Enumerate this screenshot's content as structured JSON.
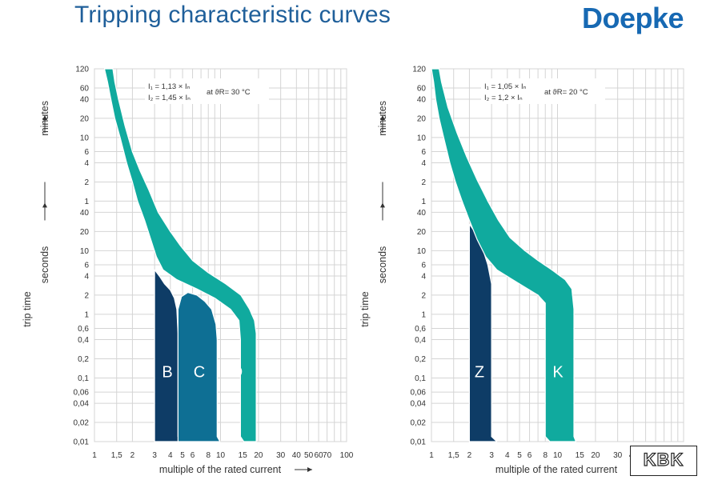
{
  "header": {
    "title": "Tripping characteristic curves",
    "brand": "Doepke"
  },
  "watermark": "KBK",
  "colors": {
    "B": "#0e3c66",
    "C": "#0e6f94",
    "D": "#10aa9e",
    "Z": "#0e3c66",
    "K": "#10aa9e",
    "title": "#1f5f9a",
    "brand": "#1769b3"
  },
  "chart_data": [
    {
      "type": "area",
      "x_scale": "log",
      "y_scale": "log",
      "xlim": [
        1,
        100
      ],
      "ylim": [
        0.01,
        7200
      ],
      "grid": true,
      "xlabel": "multiple of the rated current",
      "ylabel_main": "trip time",
      "ylabel_seconds": "seconds",
      "ylabel_minutes": "minutes",
      "x_ticks": [
        {
          "v": 1,
          "l": "1"
        },
        {
          "v": 1.5,
          "l": "1,5"
        },
        {
          "v": 2,
          "l": "2"
        },
        {
          "v": 3,
          "l": "3"
        },
        {
          "v": 4,
          "l": "4"
        },
        {
          "v": 5,
          "l": "5"
        },
        {
          "v": 6,
          "l": "6"
        },
        {
          "v": 8,
          "l": "8"
        },
        {
          "v": 10,
          "l": "10"
        },
        {
          "v": 15,
          "l": "15"
        },
        {
          "v": 20,
          "l": "20"
        },
        {
          "v": 30,
          "l": "30"
        },
        {
          "v": 40,
          "l": "40"
        },
        {
          "v": 50,
          "l": "50"
        },
        {
          "v": 60,
          "l": "60"
        },
        {
          "v": 70,
          "l": "70"
        },
        {
          "v": 100,
          "l": "100"
        }
      ],
      "y_ticks": [
        {
          "v": 0.01,
          "l": "0,01"
        },
        {
          "v": 0.02,
          "l": "0,02"
        },
        {
          "v": 0.04,
          "l": "0,04"
        },
        {
          "v": 0.06,
          "l": "0,06"
        },
        {
          "v": 0.1,
          "l": "0,1"
        },
        {
          "v": 0.2,
          "l": "0,2"
        },
        {
          "v": 0.4,
          "l": "0,4"
        },
        {
          "v": 0.6,
          "l": "0,6"
        },
        {
          "v": 1,
          "l": "1"
        },
        {
          "v": 2,
          "l": "2"
        },
        {
          "v": 4,
          "l": "4"
        },
        {
          "v": 6,
          "l": "6"
        },
        {
          "v": 10,
          "l": "10"
        },
        {
          "v": 20,
          "l": "20"
        },
        {
          "v": 40,
          "l": "40"
        },
        {
          "v": 60,
          "l": "1"
        },
        {
          "v": 120,
          "l": "2"
        },
        {
          "v": 240,
          "l": "4"
        },
        {
          "v": 360,
          "l": "6"
        },
        {
          "v": 600,
          "l": "10"
        },
        {
          "v": 1200,
          "l": "20"
        },
        {
          "v": 2400,
          "l": "40"
        },
        {
          "v": 3600,
          "l": "60"
        },
        {
          "v": 7200,
          "l": "120"
        }
      ],
      "notes": {
        "i1": "I₁ = 1,13 × Iₙ",
        "i2": "I₂ = 1,45 × Iₙ",
        "temp": "at ϑR= 30 °C"
      },
      "series": [
        {
          "name": "B",
          "points": [
            [
              3.0,
              0.01
            ],
            [
              3.0,
              5.0
            ],
            [
              3.3,
              3.9
            ],
            [
              3.6,
              3.0
            ],
            [
              4.0,
              2.4
            ],
            [
              4.3,
              1.8
            ],
            [
              4.5,
              1.2
            ],
            [
              4.6,
              0.5
            ],
            [
              4.6,
              0.012
            ],
            [
              4.9,
              0.01
            ]
          ]
        },
        {
          "name": "C",
          "points": [
            [
              4.6,
              0.01
            ],
            [
              4.6,
              1.2
            ],
            [
              4.9,
              1.9
            ],
            [
              5.5,
              2.2
            ],
            [
              6.5,
              2.0
            ],
            [
              7.5,
              1.6
            ],
            [
              8.5,
              1.2
            ],
            [
              9.2,
              0.7
            ],
            [
              9.4,
              0.4
            ],
            [
              9.4,
              0.012
            ],
            [
              9.9,
              0.01
            ]
          ]
        },
        {
          "name": "D",
          "points": [
            [
              1.2,
              7200
            ],
            [
              1.27,
              4500
            ],
            [
              1.35,
              2400
            ],
            [
              1.45,
              1200
            ],
            [
              1.6,
              600
            ],
            [
              1.8,
              240
            ],
            [
              2.0,
              120
            ],
            [
              2.2,
              60
            ],
            [
              2.5,
              30
            ],
            [
              2.8,
              15
            ],
            [
              3.1,
              8
            ],
            [
              3.5,
              5
            ],
            [
              4.5,
              3.5
            ],
            [
              6.5,
              2.5
            ],
            [
              9.0,
              1.8
            ],
            [
              12,
              1.2
            ],
            [
              14,
              0.8
            ],
            [
              14.4,
              0.4
            ],
            [
              14.4,
              0.012
            ],
            [
              15.3,
              0.01
            ],
            [
              19.2,
              0.01
            ],
            [
              19.2,
              0.5
            ],
            [
              18.6,
              0.8
            ],
            [
              17,
              1.2
            ],
            [
              14.5,
              2.0
            ],
            [
              11,
              3.0
            ],
            [
              8,
              4.5
            ],
            [
              6,
              7
            ],
            [
              4.8,
              12
            ],
            [
              4,
              20
            ],
            [
              3.2,
              40
            ],
            [
              2.7,
              90
            ],
            [
              2.3,
              180
            ],
            [
              2.0,
              360
            ],
            [
              1.75,
              900
            ],
            [
              1.55,
              2400
            ],
            [
              1.45,
              4500
            ],
            [
              1.4,
              7200
            ]
          ]
        }
      ]
    },
    {
      "type": "area",
      "x_scale": "log",
      "y_scale": "log",
      "xlim": [
        1,
        100
      ],
      "ylim": [
        0.01,
        7200
      ],
      "grid": true,
      "xlabel": "multiple of the rated current",
      "ylabel_main": "trip time",
      "ylabel_seconds": "seconds",
      "ylabel_minutes": "minutes",
      "x_ticks": [
        {
          "v": 1,
          "l": "1"
        },
        {
          "v": 1.5,
          "l": "1,5"
        },
        {
          "v": 2,
          "l": "2"
        },
        {
          "v": 3,
          "l": "3"
        },
        {
          "v": 4,
          "l": "4"
        },
        {
          "v": 5,
          "l": "5"
        },
        {
          "v": 6,
          "l": "6"
        },
        {
          "v": 8,
          "l": "8"
        },
        {
          "v": 10,
          "l": "10"
        },
        {
          "v": 15,
          "l": "15"
        },
        {
          "v": 20,
          "l": "20"
        },
        {
          "v": 30,
          "l": "30"
        },
        {
          "v": 40,
          "l": "40"
        }
      ],
      "y_ticks": [
        {
          "v": 0.01,
          "l": "0,01"
        },
        {
          "v": 0.02,
          "l": "0,02"
        },
        {
          "v": 0.04,
          "l": "0,04"
        },
        {
          "v": 0.06,
          "l": "0,06"
        },
        {
          "v": 0.1,
          "l": "0,1"
        },
        {
          "v": 0.2,
          "l": "0,2"
        },
        {
          "v": 0.4,
          "l": "0,4"
        },
        {
          "v": 0.6,
          "l": "0,6"
        },
        {
          "v": 1,
          "l": "1"
        },
        {
          "v": 2,
          "l": "2"
        },
        {
          "v": 4,
          "l": "4"
        },
        {
          "v": 6,
          "l": "6"
        },
        {
          "v": 10,
          "l": "10"
        },
        {
          "v": 20,
          "l": "20"
        },
        {
          "v": 40,
          "l": "40"
        },
        {
          "v": 60,
          "l": "1"
        },
        {
          "v": 120,
          "l": "2"
        },
        {
          "v": 240,
          "l": "4"
        },
        {
          "v": 360,
          "l": "6"
        },
        {
          "v": 600,
          "l": "10"
        },
        {
          "v": 1200,
          "l": "20"
        },
        {
          "v": 2400,
          "l": "40"
        },
        {
          "v": 3600,
          "l": "60"
        },
        {
          "v": 7200,
          "l": "120"
        }
      ],
      "notes": {
        "i1": "I₁ = 1,05 × Iₙ",
        "i2": "I₂ = 1,2 × Iₙ",
        "temp": "at ϑR= 20 °C"
      },
      "series": [
        {
          "name": "Z",
          "points": [
            [
              2.0,
              0.01
            ],
            [
              2.0,
              26
            ],
            [
              2.2,
              20
            ],
            [
              2.5,
              12
            ],
            [
              2.8,
              6
            ],
            [
              3.0,
              3
            ],
            [
              3.0,
              0.012
            ],
            [
              3.3,
              0.01
            ]
          ]
        },
        {
          "name": "K",
          "points": [
            [
              1.0,
              7200
            ],
            [
              1.04,
              4500
            ],
            [
              1.08,
              2400
            ],
            [
              1.15,
              1200
            ],
            [
              1.25,
              600
            ],
            [
              1.4,
              240
            ],
            [
              1.55,
              120
            ],
            [
              1.75,
              60
            ],
            [
              2.0,
              30
            ],
            [
              2.3,
              15
            ],
            [
              2.7,
              8
            ],
            [
              3.3,
              5
            ],
            [
              5.0,
              3
            ],
            [
              7.0,
              2
            ],
            [
              8.0,
              1.5
            ],
            [
              8.0,
              0.012
            ],
            [
              8.7,
              0.01
            ],
            [
              14,
              0.01
            ],
            [
              13.5,
              0.012
            ],
            [
              13.5,
              1.2
            ],
            [
              13,
              2.5
            ],
            [
              11.5,
              3.5
            ],
            [
              9,
              5
            ],
            [
              7,
              7
            ],
            [
              5.5,
              10
            ],
            [
              4.2,
              16
            ],
            [
              3.4,
              30
            ],
            [
              2.8,
              60
            ],
            [
              2.3,
              130
            ],
            [
              1.9,
              300
            ],
            [
              1.6,
              700
            ],
            [
              1.35,
              1800
            ],
            [
              1.2,
              4500
            ],
            [
              1.15,
              7200
            ]
          ]
        }
      ]
    }
  ]
}
